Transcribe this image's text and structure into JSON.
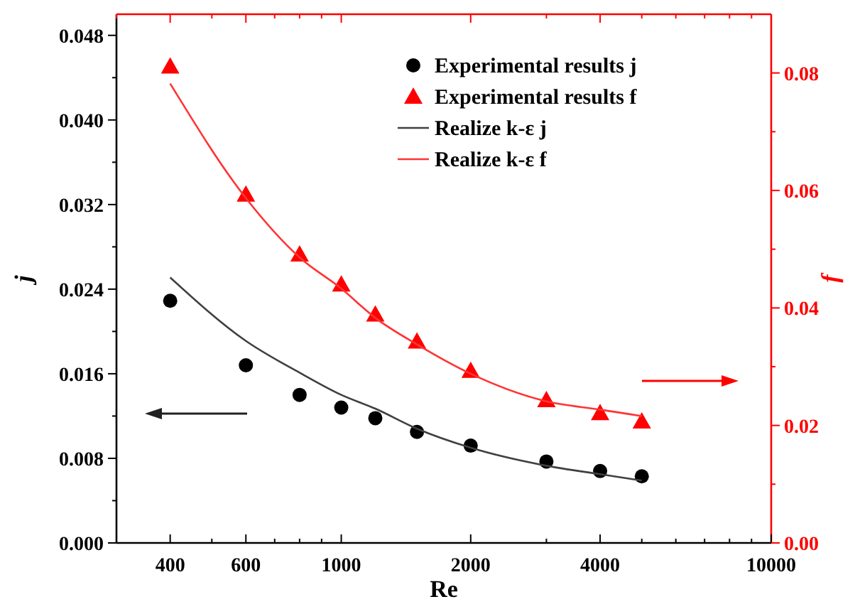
{
  "chart_data": {
    "type": "scatter",
    "xlabel": "Re",
    "ylabel": "j",
    "y2label": "f",
    "log": "x",
    "xlim": [
      300,
      10000
    ],
    "xticks": [
      {
        "value": 300,
        "label": null
      },
      400,
      {
        "value": 500,
        "label": null
      },
      600,
      {
        "value": 700,
        "label": null
      },
      {
        "value": 800,
        "label": null
      },
      {
        "value": 900,
        "label": null
      },
      1000,
      2000,
      {
        "value": 3000,
        "label": null
      },
      4000,
      {
        "value": 5000,
        "label": null
      },
      {
        "value": 6000,
        "label": null
      },
      {
        "value": 7000,
        "label": null
      },
      {
        "value": 8000,
        "label": null
      },
      {
        "value": 9000,
        "label": null
      },
      10000
    ],
    "ylim": [
      0,
      0.05
    ],
    "yticks": [
      {
        "value": 0,
        "label": "0.000"
      },
      {
        "value": 0.004,
        "label": null
      },
      {
        "value": 0.008,
        "label": "0.008"
      },
      {
        "value": 0.012,
        "label": null
      },
      {
        "value": 0.016,
        "label": "0.016"
      },
      {
        "value": 0.02,
        "label": null
      },
      {
        "value": 0.024,
        "label": "0.024"
      },
      {
        "value": 0.028,
        "label": null
      },
      {
        "value": 0.032,
        "label": "0.032"
      },
      {
        "value": 0.036,
        "label": null
      },
      {
        "value": 0.04,
        "label": "0.040"
      },
      {
        "value": 0.044,
        "label": null
      },
      {
        "value": 0.048,
        "label": "0.048"
      }
    ],
    "y2lim": [
      0,
      0.09
    ],
    "y2ticks": [
      {
        "value": 0,
        "label": "0.00"
      },
      {
        "value": 0.01,
        "label": null
      },
      {
        "value": 0.02,
        "label": "0.02"
      },
      {
        "value": 0.03,
        "label": null
      },
      {
        "value": 0.04,
        "label": "0.04"
      },
      {
        "value": 0.05,
        "label": null
      },
      {
        "value": 0.06,
        "label": "0.06"
      },
      {
        "value": 0.07,
        "label": null
      },
      {
        "value": 0.08,
        "label": "0.08"
      }
    ],
    "grid": false,
    "legend": "top right",
    "x": [
      400,
      600,
      800,
      1000,
      1200,
      1500,
      2000,
      3000,
      4000,
      5000
    ],
    "series": [
      {
        "name": "Experimental results j",
        "marker": "circle",
        "color": "#000000",
        "values": [
          0.0229,
          0.0168,
          0.014,
          0.0128,
          0.0118,
          0.0105,
          0.0092,
          0.0077,
          0.0068,
          0.0063
        ]
      },
      {
        "name": "Experimental results f",
        "marker": "triangle",
        "color": "#ff0000",
        "axis": "y2",
        "values": [
          0.0811,
          0.0593,
          0.0491,
          0.044,
          0.0389,
          0.0343,
          0.0293,
          0.0243,
          0.0221,
          0.0207
        ]
      },
      {
        "name": "Realize k-ε  j",
        "type": "line",
        "marker": "none",
        "color": "#404040",
        "values": [
          0.0251,
          0.0191,
          0.0161,
          0.014,
          0.0127,
          0.0108,
          0.009,
          0.0073,
          0.0065,
          0.0059
        ]
      },
      {
        "name": "Realize k-ε  f",
        "type": "line",
        "marker": "none",
        "color": "#ff3333",
        "axis": "y2",
        "values": [
          0.0782,
          0.0587,
          0.0486,
          0.0433,
          0.0383,
          0.0338,
          0.0288,
          0.0241,
          0.0227,
          0.0216
        ]
      }
    ]
  }
}
